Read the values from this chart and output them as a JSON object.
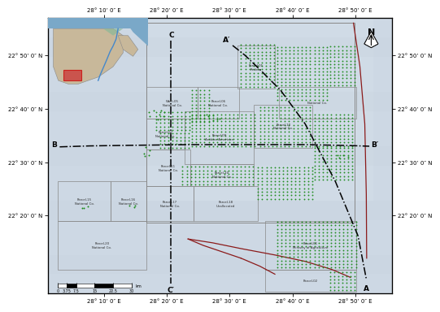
{
  "lon_min": 28.02,
  "lon_max": 28.93,
  "lat_min": 22.09,
  "lat_max": 22.95,
  "lon_ticks": [
    28.1667,
    28.3333,
    28.5,
    28.6667,
    28.8333
  ],
  "lon_labels_top": [
    "28° 10’ 0″ E",
    "28° 20’ 0″ E",
    "28° 30’ 0″ E",
    "28° 40’ 0″ E",
    "28° 50’ 0″ E"
  ],
  "lon_labels_bot": [
    "28° 10’ 0″ E",
    "28° 20’ 0″ E",
    "28° 30’ 0″ E",
    "28° 40’ 0″ E",
    "28° 50’ 0″ E"
  ],
  "lat_ticks": [
    22.8333,
    22.6667,
    22.5,
    22.3333
  ],
  "lat_labels_left": [
    "22° 50’ 0″ N",
    "22° 40’ 0″ N",
    "22° 30’ 0″ N",
    "22° 20’ 0″ N"
  ],
  "lat_labels_right": [
    "22° 50’ 0″ N",
    "22° 40’ 0″ N",
    "22° 30’ 0″ N",
    "22° 20’ 0″ N"
  ],
  "bg_color": "#ccd8e2",
  "parcel_color": "#888888",
  "dot_color": "#1a8a1a",
  "road_color": "#8b1a1a",
  "cs_color": "#000000"
}
